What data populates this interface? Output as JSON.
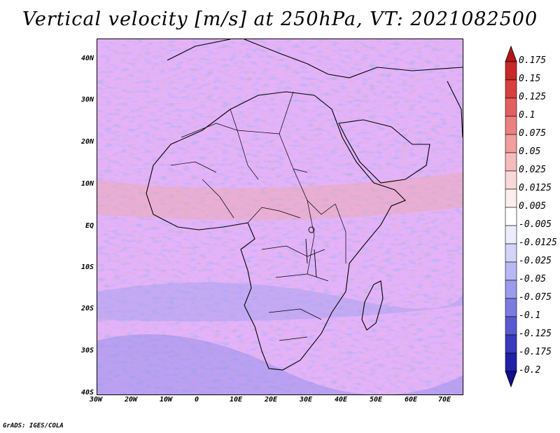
{
  "title": "Vertical velocity [m/s] at 250hPa, VT: 2021082500",
  "credit": "GrADS: IGES/COLA",
  "map": {
    "lat_labels": [
      "40N",
      "30N",
      "20N",
      "10N",
      "EQ",
      "10S",
      "20S",
      "30S",
      "40S"
    ],
    "lon_labels": [
      "30W",
      "20W",
      "10W",
      "0",
      "10E",
      "20E",
      "30E",
      "40E",
      "50E",
      "60E",
      "70E"
    ],
    "lat_range": [
      -40,
      44
    ],
    "lon_range": [
      -30,
      75
    ]
  },
  "colorbar": {
    "levels": [
      "0.175",
      "0.15",
      "0.125",
      "0.1",
      "0.075",
      "0.05",
      "0.025",
      "0.0125",
      "0.005",
      "-0.005",
      "-0.0125",
      "-0.025",
      "-0.05",
      "-0.075",
      "-0.1",
      "-0.125",
      "-0.175",
      "-0.2"
    ],
    "colors": [
      "#b01818",
      "#c82828",
      "#d84040",
      "#e46060",
      "#ec8080",
      "#f29e9e",
      "#f6bcbc",
      "#fad8d8",
      "#fdeeee",
      "#ffffff",
      "#ececfd",
      "#d4d4fa",
      "#b8b8f4",
      "#9c9cec",
      "#7c7ce0",
      "#5a5ad0",
      "#3a3abc",
      "#2020a8",
      "#10108c"
    ]
  }
}
